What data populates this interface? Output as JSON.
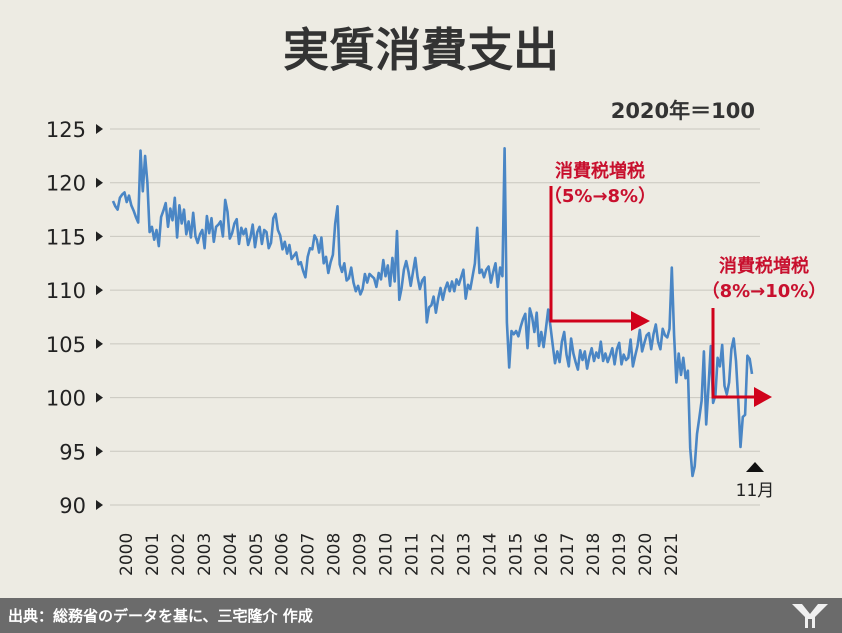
{
  "chart_data": {
    "type": "line",
    "title": "実質消費支出",
    "unit_note": "2020年＝100",
    "ylim": [
      90,
      125
    ],
    "yticks": [
      125,
      120,
      115,
      110,
      105,
      100,
      95,
      90
    ],
    "ytick_labels": [
      "125",
      "120",
      "115",
      "110",
      "105",
      "100",
      "95",
      "90"
    ],
    "xtick_labels": [
      "2000",
      "2001",
      "2002",
      "2003",
      "2004",
      "2005",
      "2006",
      "2007",
      "2008",
      "2009",
      "2010",
      "2011",
      "2012",
      "2013",
      "2014",
      "2015",
      "2016",
      "2017",
      "2018",
      "2019",
      "2020",
      "2021"
    ],
    "grid": true,
    "line_color": "#4a86c5",
    "annotations": [
      {
        "text_line1": "消費税増税",
        "text_line2": "（5%→8%）",
        "color": "#d0021b"
      },
      {
        "text_line1": "消費税増税",
        "text_line2": "（8%→10%）",
        "color": "#d0021b"
      }
    ],
    "end_marker_label": "11月",
    "series": [
      {
        "values": [
          118.3,
          117.8,
          117.5,
          118.6,
          118.9,
          119.1,
          118.2,
          118.8,
          117.9,
          117.4,
          116.8,
          116.3,
          123.0,
          119.2,
          122.5,
          120.0,
          115.4,
          115.9,
          114.7,
          115.6,
          114.1,
          116.8,
          117.4,
          118.1,
          115.9,
          117.6,
          116.5,
          118.6,
          114.9,
          117.9,
          116.2,
          117.5,
          115.2,
          116.4,
          114.9,
          117.2,
          115.0,
          114.4,
          115.2,
          115.6,
          113.9,
          116.9,
          115.3,
          116.7,
          114.5,
          115.9,
          116.1,
          116.4,
          115.0,
          118.4,
          117.3,
          114.8,
          115.3,
          116.2,
          116.6,
          114.3,
          115.8,
          115.2,
          115.7,
          114.2,
          114.9,
          116.1,
          114.0,
          115.4,
          115.9,
          114.3,
          115.6,
          115.4,
          113.9,
          114.4,
          116.7,
          117.1,
          115.6,
          115.1,
          113.8,
          114.5,
          113.4,
          114.2,
          112.9,
          113.2,
          113.5,
          112.4,
          112.6,
          111.8,
          111.2,
          113.1,
          113.9,
          113.8,
          115.1,
          114.7,
          113.5,
          114.9,
          112.5,
          113.1,
          111.6,
          112.6,
          113.3,
          116.2,
          117.8,
          112.4,
          111.7,
          112.5,
          110.9,
          111.1,
          112.1,
          110.7,
          109.9,
          110.4,
          109.6,
          110.1,
          111.5,
          110.7,
          111.5,
          111.3,
          111.1,
          110.3,
          111.6,
          111.0,
          112.8,
          111.3,
          112.3,
          110.4,
          113.0,
          110.8,
          115.5,
          109.1,
          110.2,
          111.9,
          112.7,
          111.7,
          110.4,
          111.7,
          113.0,
          111.2,
          110.1,
          110.9,
          111.2,
          107.0,
          108.4,
          108.6,
          109.4,
          107.9,
          109.2,
          110.2,
          109.1,
          110.1,
          110.7,
          109.9,
          110.8,
          109.9,
          111.0,
          110.5,
          111.2,
          111.9,
          109.2,
          110.5,
          110.1,
          111.3,
          112.5,
          115.8,
          111.6,
          111.9,
          111.2,
          111.9,
          112.2,
          110.7,
          111.7,
          112.5,
          110.3,
          112.1,
          111.3,
          123.2,
          107.0,
          102.8,
          106.2,
          105.9,
          106.2,
          105.7,
          106.6,
          107.3,
          107.8,
          104.6,
          108.3,
          107.5,
          106.1,
          107.9,
          104.8,
          106.1,
          104.7,
          106.4,
          108.2,
          106.6,
          104.9,
          103.2,
          104.3,
          103.3,
          105.2,
          106.1,
          104.0,
          102.9,
          105.5,
          104.1,
          103.3,
          102.6,
          104.4,
          103.5,
          104.3,
          102.7,
          103.8,
          104.6,
          103.4,
          104.2,
          103.7,
          105.2,
          103.4,
          104.1,
          103.3,
          103.9,
          104.6,
          103.1,
          104.5,
          105.1,
          103.1,
          104.0,
          103.5,
          103.7,
          105.4,
          102.9,
          103.9,
          104.8,
          106.3,
          104.3,
          105.1,
          105.8,
          106.0,
          104.5,
          105.9,
          106.8,
          105.2,
          104.5,
          106.4,
          105.8,
          105.6,
          106.4,
          112.1,
          105.8,
          101.4,
          104.1,
          102.1,
          103.7,
          101.8,
          102.5,
          95.3,
          92.7,
          93.6,
          96.6,
          98.1,
          99.7,
          104.3,
          97.5,
          101.0,
          104.8,
          99.5,
          100.2,
          103.7,
          102.9,
          104.9,
          101.1,
          100.3,
          101.4,
          104.5,
          105.5,
          103.4,
          99.6,
          95.4,
          98.2,
          98.4,
          103.9,
          103.6,
          102.2
        ]
      }
    ]
  },
  "footer": {
    "text": "出典：総務省のデータを基に、三宅隆介 作成"
  }
}
